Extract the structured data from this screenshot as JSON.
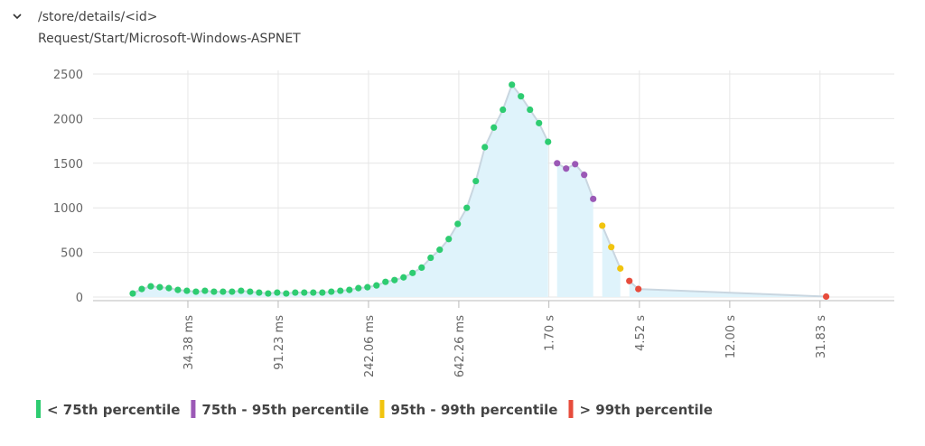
{
  "header": {
    "title": "/store/details/<id>",
    "subtitle": "Request/Start/Microsoft-Windows-ASPNET"
  },
  "chart_data": {
    "type": "scatter-area",
    "xscale": "log",
    "xlim": [
      12.34,
      71000
    ],
    "ylim": [
      0,
      2500
    ],
    "yticks": [
      0,
      500,
      1000,
      1500,
      2000,
      2500
    ],
    "xticks": [
      {
        "value": 34.38,
        "label": "34.38 ms"
      },
      {
        "value": 91.23,
        "label": "91.23 ms"
      },
      {
        "value": 242.06,
        "label": "242.06 ms"
      },
      {
        "value": 642.26,
        "label": "642.26 ms"
      },
      {
        "value": 1700,
        "label": "1.70 s"
      },
      {
        "value": 4520,
        "label": "4.52 s"
      },
      {
        "value": 12000,
        "label": "12.00 s"
      },
      {
        "value": 31830,
        "label": "31.83 s"
      }
    ],
    "grid": true,
    "area_color": "#dff3fb",
    "series": [
      {
        "name": "< 75th percentile",
        "color": "#2ecc71",
        "x": [
          18.95,
          20.89,
          23.03,
          25.39,
          27.99,
          30.86,
          34.02,
          37.51,
          41.35,
          45.59,
          50.26,
          55.41,
          61.09,
          67.35,
          74.25,
          81.86,
          90.25,
          99.5,
          109.7,
          120.9,
          133.3,
          147,
          162,
          178.6,
          196.9,
          217.1,
          239.4,
          263.9,
          290.9,
          320.7,
          353.6,
          389.8,
          429.8,
          473.8,
          522.4,
          575.9,
          634.9,
          700,
          771.8,
          850.9,
          938.1,
          1034,
          1140,
          1257,
          1386,
          1528,
          1685
        ],
        "values": [
          40,
          90,
          120,
          110,
          100,
          80,
          70,
          60,
          70,
          60,
          60,
          60,
          70,
          60,
          50,
          40,
          50,
          40,
          50,
          50,
          50,
          50,
          60,
          70,
          80,
          100,
          110,
          130,
          170,
          190,
          220,
          270,
          330,
          440,
          530,
          650,
          820,
          1000,
          1300,
          1680,
          1900,
          2100,
          2380,
          2250,
          2100,
          1950,
          1740
        ]
      },
      {
        "name": "75th - 95th percentile",
        "color": "#9b59b6",
        "x": [
          1858,
          2048,
          2258,
          2489,
          2744
        ],
        "values": [
          1500,
          1440,
          1490,
          1370,
          1100
        ]
      },
      {
        "name": "95th - 99th percentile",
        "color": "#f1c40f",
        "x": [
          3026,
          3336,
          3678
        ],
        "values": [
          800,
          560,
          320
        ]
      },
      {
        "name": "> 99th percentile",
        "color": "#e74c3c",
        "x": [
          4055,
          4470,
          34000
        ],
        "values": [
          180,
          90,
          5
        ]
      }
    ]
  }
}
